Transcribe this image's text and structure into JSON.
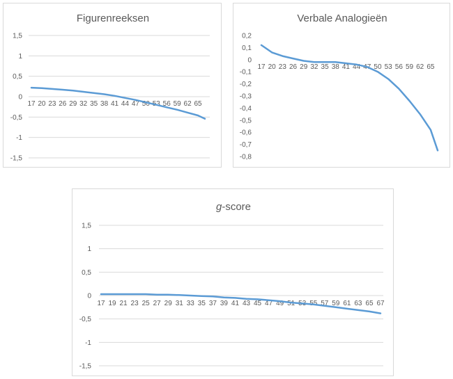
{
  "chart_data": [
    {
      "type": "line",
      "title": "Figurenreeksen",
      "title_italic_part": "",
      "xlabel": "",
      "ylabel": "",
      "categories": [
        "17",
        "20",
        "23",
        "26",
        "29",
        "32",
        "35",
        "38",
        "41",
        "44",
        "47",
        "50",
        "53",
        "56",
        "59",
        "62",
        "65"
      ],
      "x": [
        17,
        20,
        23,
        26,
        29,
        32,
        35,
        38,
        41,
        44,
        47,
        50,
        53,
        56,
        59,
        62,
        65,
        67
      ],
      "series": [
        {
          "values": [
            0.22,
            0.21,
            0.19,
            0.17,
            0.15,
            0.12,
            0.09,
            0.06,
            0.02,
            -0.03,
            -0.08,
            -0.14,
            -0.2,
            -0.26,
            -0.32,
            -0.39,
            -0.46,
            -0.54
          ]
        }
      ],
      "ylim": [
        -1.5,
        1.5
      ],
      "yticks": [
        1.5,
        1,
        0.5,
        0,
        -0.5,
        -1,
        -1.5
      ],
      "ytick_labels": [
        "1,5",
        "1",
        "0,5",
        "0",
        "-0,5",
        "-1",
        "-1,5"
      ],
      "grid": true,
      "color": "#5b9bd5"
    },
    {
      "type": "line",
      "title": "Verbale Analogieën",
      "title_italic_part": "",
      "xlabel": "",
      "ylabel": "",
      "categories": [
        "17",
        "20",
        "23",
        "26",
        "29",
        "32",
        "35",
        "38",
        "41",
        "44",
        "47",
        "50",
        "53",
        "56",
        "59",
        "62",
        "65"
      ],
      "x": [
        17,
        18,
        20,
        23,
        26,
        29,
        32,
        35,
        38,
        41,
        44,
        47,
        50,
        53,
        56,
        59,
        62,
        65,
        67
      ],
      "series": [
        {
          "values": [
            0.12,
            0.1,
            0.06,
            0.03,
            0.01,
            -0.01,
            -0.02,
            -0.02,
            -0.02,
            -0.03,
            -0.04,
            -0.06,
            -0.1,
            -0.16,
            -0.24,
            -0.34,
            -0.45,
            -0.58,
            -0.75
          ]
        }
      ],
      "ylim": [
        -0.8,
        0.2
      ],
      "yticks": [
        0.2,
        0.1,
        0,
        -0.1,
        -0.2,
        -0.3,
        -0.4,
        -0.5,
        -0.6,
        -0.7,
        -0.8
      ],
      "ytick_labels": [
        "0,2",
        "0,1",
        "0",
        "-0,1",
        "-0,2",
        "-0,3",
        "-0,4",
        "-0,5",
        "-0,6",
        "-0,7",
        "-0,8"
      ],
      "grid": false,
      "color": "#5b9bd5"
    },
    {
      "type": "line",
      "title": "-score",
      "title_italic_part": "g",
      "xlabel": "",
      "ylabel": "",
      "categories": [
        "17",
        "19",
        "21",
        "23",
        "25",
        "27",
        "29",
        "31",
        "33",
        "35",
        "37",
        "39",
        "41",
        "43",
        "45",
        "47",
        "49",
        "51",
        "53",
        "55",
        "57",
        "59",
        "61",
        "63",
        "65",
        "67"
      ],
      "x": [
        17,
        19,
        21,
        23,
        25,
        27,
        29,
        31,
        33,
        35,
        37,
        39,
        41,
        43,
        45,
        47,
        49,
        51,
        53,
        55,
        57,
        59,
        61,
        63,
        65,
        67
      ],
      "series": [
        {
          "values": [
            0.03,
            0.03,
            0.03,
            0.03,
            0.03,
            0.02,
            0.02,
            0.01,
            0.0,
            -0.01,
            -0.02,
            -0.04,
            -0.05,
            -0.07,
            -0.08,
            -0.1,
            -0.12,
            -0.15,
            -0.17,
            -0.19,
            -0.22,
            -0.25,
            -0.28,
            -0.31,
            -0.34,
            -0.38
          ]
        }
      ],
      "ylim": [
        -1.5,
        1.5
      ],
      "yticks": [
        1.5,
        1,
        0.5,
        0,
        -0.5,
        -1,
        -1.5
      ],
      "ytick_labels": [
        "1,5",
        "1",
        "0,5",
        "0",
        "-0,5",
        "-1",
        "-1,5"
      ],
      "grid": true,
      "color": "#5b9bd5"
    }
  ]
}
